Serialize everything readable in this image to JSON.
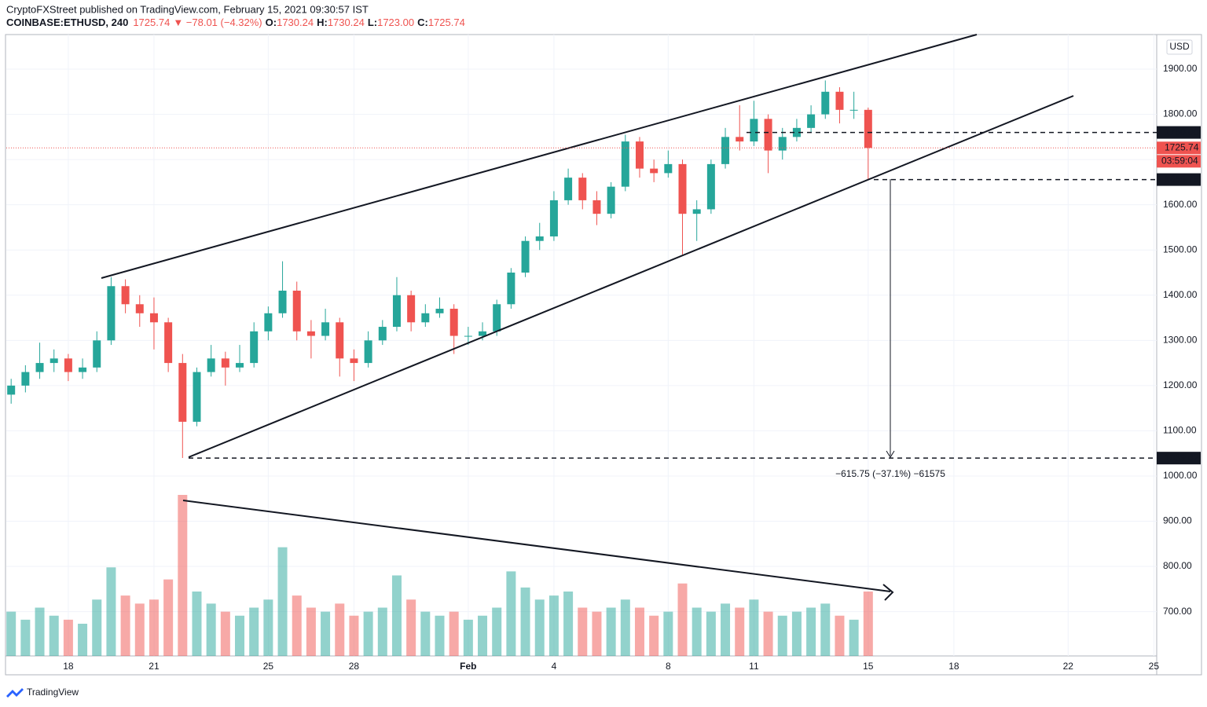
{
  "header": {
    "publisher": "CryptoFXStreet published on TradingView.com, February 15, 2021 09:30:57 IST",
    "symbol": "COINBASE:ETHUSD, 240",
    "last": "1725.74",
    "change": "▼ −78.01 (−4.32%)",
    "ohlc": [
      {
        "label": "O:",
        "value": "1730.24"
      },
      {
        "label": "H:",
        "value": "1730.24"
      },
      {
        "label": "L:",
        "value": "1723.00"
      },
      {
        "label": "C:",
        "value": "1725.74"
      }
    ]
  },
  "chart_data": {
    "type": "candlestick",
    "currency": "USD",
    "x": [
      16,
      16.5,
      17,
      17.5,
      18,
      18.5,
      19,
      19.5,
      20,
      20.5,
      21,
      21.5,
      22,
      22.5,
      23,
      23.5,
      24,
      24.5,
      25,
      25.5,
      26,
      26.5,
      27,
      27.5,
      28,
      28.5,
      29,
      29.5,
      30,
      30.5,
      31,
      31.5,
      32,
      32.5,
      33,
      33.5,
      34,
      34.5,
      35,
      35.5,
      36,
      36.5,
      37,
      37.5,
      38,
      38.5,
      39,
      39.5,
      40,
      40.5,
      41,
      41.5,
      42,
      42.5,
      43,
      43.5,
      44,
      44.5,
      45,
      45.5,
      46
    ],
    "open": [
      1180,
      1200,
      1230,
      1250,
      1260,
      1230,
      1240,
      1300,
      1420,
      1380,
      1360,
      1340,
      1250,
      1120,
      1230,
      1260,
      1240,
      1250,
      1320,
      1360,
      1410,
      1320,
      1310,
      1340,
      1260,
      1250,
      1300,
      1330,
      1400,
      1340,
      1360,
      1370,
      1310,
      1310,
      1320,
      1380,
      1450,
      1520,
      1530,
      1610,
      1660,
      1610,
      1580,
      1640,
      1740,
      1680,
      1670,
      1690,
      1580,
      1590,
      1690,
      1750,
      1740,
      1790,
      1720,
      1750,
      1770,
      1800,
      1850,
      1810,
      1810
    ],
    "high": [
      1215,
      1245,
      1295,
      1280,
      1270,
      1260,
      1320,
      1440,
      1435,
      1400,
      1395,
      1350,
      1270,
      1240,
      1290,
      1275,
      1290,
      1340,
      1375,
      1475,
      1430,
      1345,
      1370,
      1350,
      1280,
      1320,
      1345,
      1440,
      1410,
      1380,
      1395,
      1380,
      1330,
      1340,
      1390,
      1460,
      1530,
      1560,
      1630,
      1680,
      1670,
      1630,
      1650,
      1755,
      1750,
      1700,
      1720,
      1700,
      1610,
      1700,
      1770,
      1820,
      1830,
      1800,
      1770,
      1790,
      1820,
      1875,
      1860,
      1850,
      1815
    ],
    "low": [
      1160,
      1185,
      1215,
      1230,
      1210,
      1215,
      1230,
      1290,
      1360,
      1330,
      1280,
      1230,
      1040,
      1110,
      1220,
      1200,
      1230,
      1240,
      1300,
      1350,
      1300,
      1260,
      1300,
      1220,
      1210,
      1240,
      1290,
      1320,
      1320,
      1330,
      1350,
      1270,
      1290,
      1300,
      1310,
      1370,
      1440,
      1500,
      1520,
      1600,
      1590,
      1555,
      1570,
      1630,
      1660,
      1650,
      1660,
      1490,
      1520,
      1580,
      1680,
      1720,
      1730,
      1670,
      1700,
      1740,
      1760,
      1790,
      1780,
      1790,
      1655.75
    ],
    "close": [
      1200,
      1230,
      1250,
      1260,
      1230,
      1240,
      1300,
      1420,
      1380,
      1360,
      1340,
      1250,
      1120,
      1230,
      1260,
      1240,
      1250,
      1320,
      1360,
      1410,
      1320,
      1310,
      1340,
      1260,
      1250,
      1300,
      1330,
      1400,
      1340,
      1360,
      1370,
      1310,
      1310,
      1320,
      1380,
      1450,
      1520,
      1530,
      1610,
      1660,
      1610,
      1580,
      1640,
      1740,
      1680,
      1670,
      1690,
      1580,
      1590,
      1690,
      1750,
      1740,
      1790,
      1720,
      1750,
      1770,
      1800,
      1850,
      1810,
      1810,
      1725.74
    ],
    "volume": [
      55,
      45,
      60,
      50,
      45,
      40,
      70,
      110,
      75,
      65,
      70,
      95,
      200,
      80,
      65,
      55,
      50,
      60,
      70,
      135,
      75,
      60,
      55,
      65,
      50,
      55,
      60,
      100,
      70,
      55,
      50,
      55,
      45,
      50,
      60,
      105,
      85,
      70,
      75,
      80,
      60,
      55,
      60,
      70,
      60,
      50,
      55,
      90,
      60,
      55,
      65,
      60,
      70,
      55,
      50,
      55,
      60,
      65,
      50,
      45,
      80
    ],
    "xlim": [
      15.83,
      56.1
    ],
    "ylim": [
      602,
      1976.5
    ],
    "xticks": [
      18,
      21,
      25,
      28,
      {
        "value": 32,
        "label": "Feb"
      },
      {
        "value": 35,
        "label": "4"
      },
      {
        "value": 39,
        "label": "8"
      },
      {
        "value": 42,
        "label": "11"
      },
      {
        "value": 46,
        "label": "15"
      },
      {
        "value": 49,
        "label": "18"
      },
      {
        "value": 53,
        "label": "22"
      },
      {
        "value": 56,
        "label": "25"
      }
    ],
    "yticks": [
      {
        "value": 700,
        "label": "700.00"
      },
      {
        "value": 800,
        "label": "800.00"
      },
      {
        "value": 900,
        "label": "900.00"
      },
      {
        "value": 1000,
        "label": "1000.00"
      },
      {
        "value": 1100,
        "label": "1100.00"
      },
      {
        "value": 1200,
        "label": "1200.00"
      },
      {
        "value": 1300,
        "label": "1300.00"
      },
      {
        "value": 1400,
        "label": "1400.00"
      },
      {
        "value": 1500,
        "label": "1500.00"
      },
      {
        "value": 1600,
        "label": "1600.00"
      },
      {
        "value": 1700,
        "label": "1700.00"
      },
      {
        "value": 1800,
        "label": "1800.00"
      },
      {
        "value": 1900,
        "label": "1900.00"
      }
    ],
    "up_color": "#26a69a",
    "down_color": "#ef5350",
    "price_labels": [
      {
        "value": 1760,
        "label": "1760.00",
        "color": "#131722"
      },
      {
        "value": 1725.74,
        "label": "1725.74",
        "color": "#ef5350"
      },
      {
        "value": 1655.75,
        "label": "1655.75",
        "color": "#131722"
      },
      {
        "value": 1039.62,
        "label": "1039.62",
        "color": "#131722"
      }
    ],
    "countdown": "03:59:04",
    "measure": "−615.75 (−37.1%) −61575"
  },
  "footer": "TradingView"
}
